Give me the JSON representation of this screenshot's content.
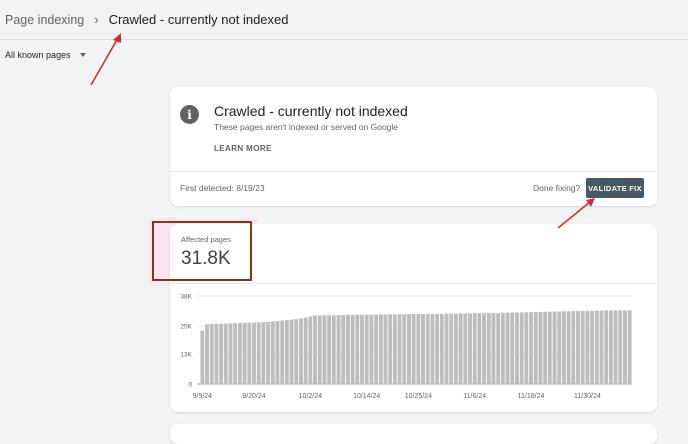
{
  "header": {
    "breadcrumb_parent": "Page indexing",
    "breadcrumb_separator": "›",
    "breadcrumb_current": "Crawled - currently not indexed"
  },
  "filter": {
    "label": "All known pages"
  },
  "issue_card": {
    "icon": "info-icon",
    "icon_glyph": "i",
    "title": "Crawled - currently not indexed",
    "description": "These pages aren't indexed or served on Google",
    "learn_more": "LEARN MORE",
    "first_detected": "First detected: 8/19/23",
    "done_fixing": "Done fixing?",
    "validate_button": "VALIDATE FIX"
  },
  "affected": {
    "label": "Affected pages",
    "value": "31.8K"
  },
  "colors": {
    "accent_button": "#455a64",
    "bars": "#bdbdbd",
    "annotation_red": "#d32f2f",
    "highlight_box": "#7b3a16"
  },
  "chart_data": {
    "type": "bar",
    "ylim": [
      0,
      38000
    ],
    "yticks": [
      "38K",
      "25K",
      "13K",
      "0"
    ],
    "ytick_values": [
      38000,
      25000,
      13000,
      0
    ],
    "xticks": [
      "9/9/24",
      "9/20/24",
      "10/2/24",
      "10/14/24",
      "10/25/24",
      "11/6/24",
      "11/18/24",
      "11/30/24"
    ],
    "xtick_bar_index": [
      0,
      11,
      23,
      35,
      46,
      58,
      70,
      82
    ],
    "series": [
      {
        "values": [
          23000,
          25800,
          25900,
          26000,
          26000,
          26100,
          26200,
          26300,
          26400,
          26400,
          26500,
          26600,
          26700,
          26800,
          26900,
          27000,
          27200,
          27400,
          27600,
          27800,
          28000,
          28300,
          28700,
          29200,
          29600,
          29600,
          29700,
          29700,
          29700,
          29800,
          29800,
          29800,
          29900,
          29900,
          29900,
          29900,
          29900,
          30000,
          30000,
          30000,
          30100,
          30100,
          30100,
          30100,
          30200,
          30200,
          30200,
          30200,
          30300,
          30300,
          30300,
          30300,
          30400,
          30400,
          30400,
          30500,
          30500,
          30500,
          30600,
          30600,
          30600,
          30700,
          30700,
          30700,
          30800,
          30800,
          30900,
          30900,
          30900,
          31000,
          31000,
          31100,
          31100,
          31200,
          31200,
          31300,
          31300,
          31400,
          31400,
          31500,
          31500,
          31600,
          31600,
          31600,
          31700,
          31700,
          31800,
          31800,
          31800,
          31800,
          31800,
          31800
        ]
      }
    ]
  }
}
